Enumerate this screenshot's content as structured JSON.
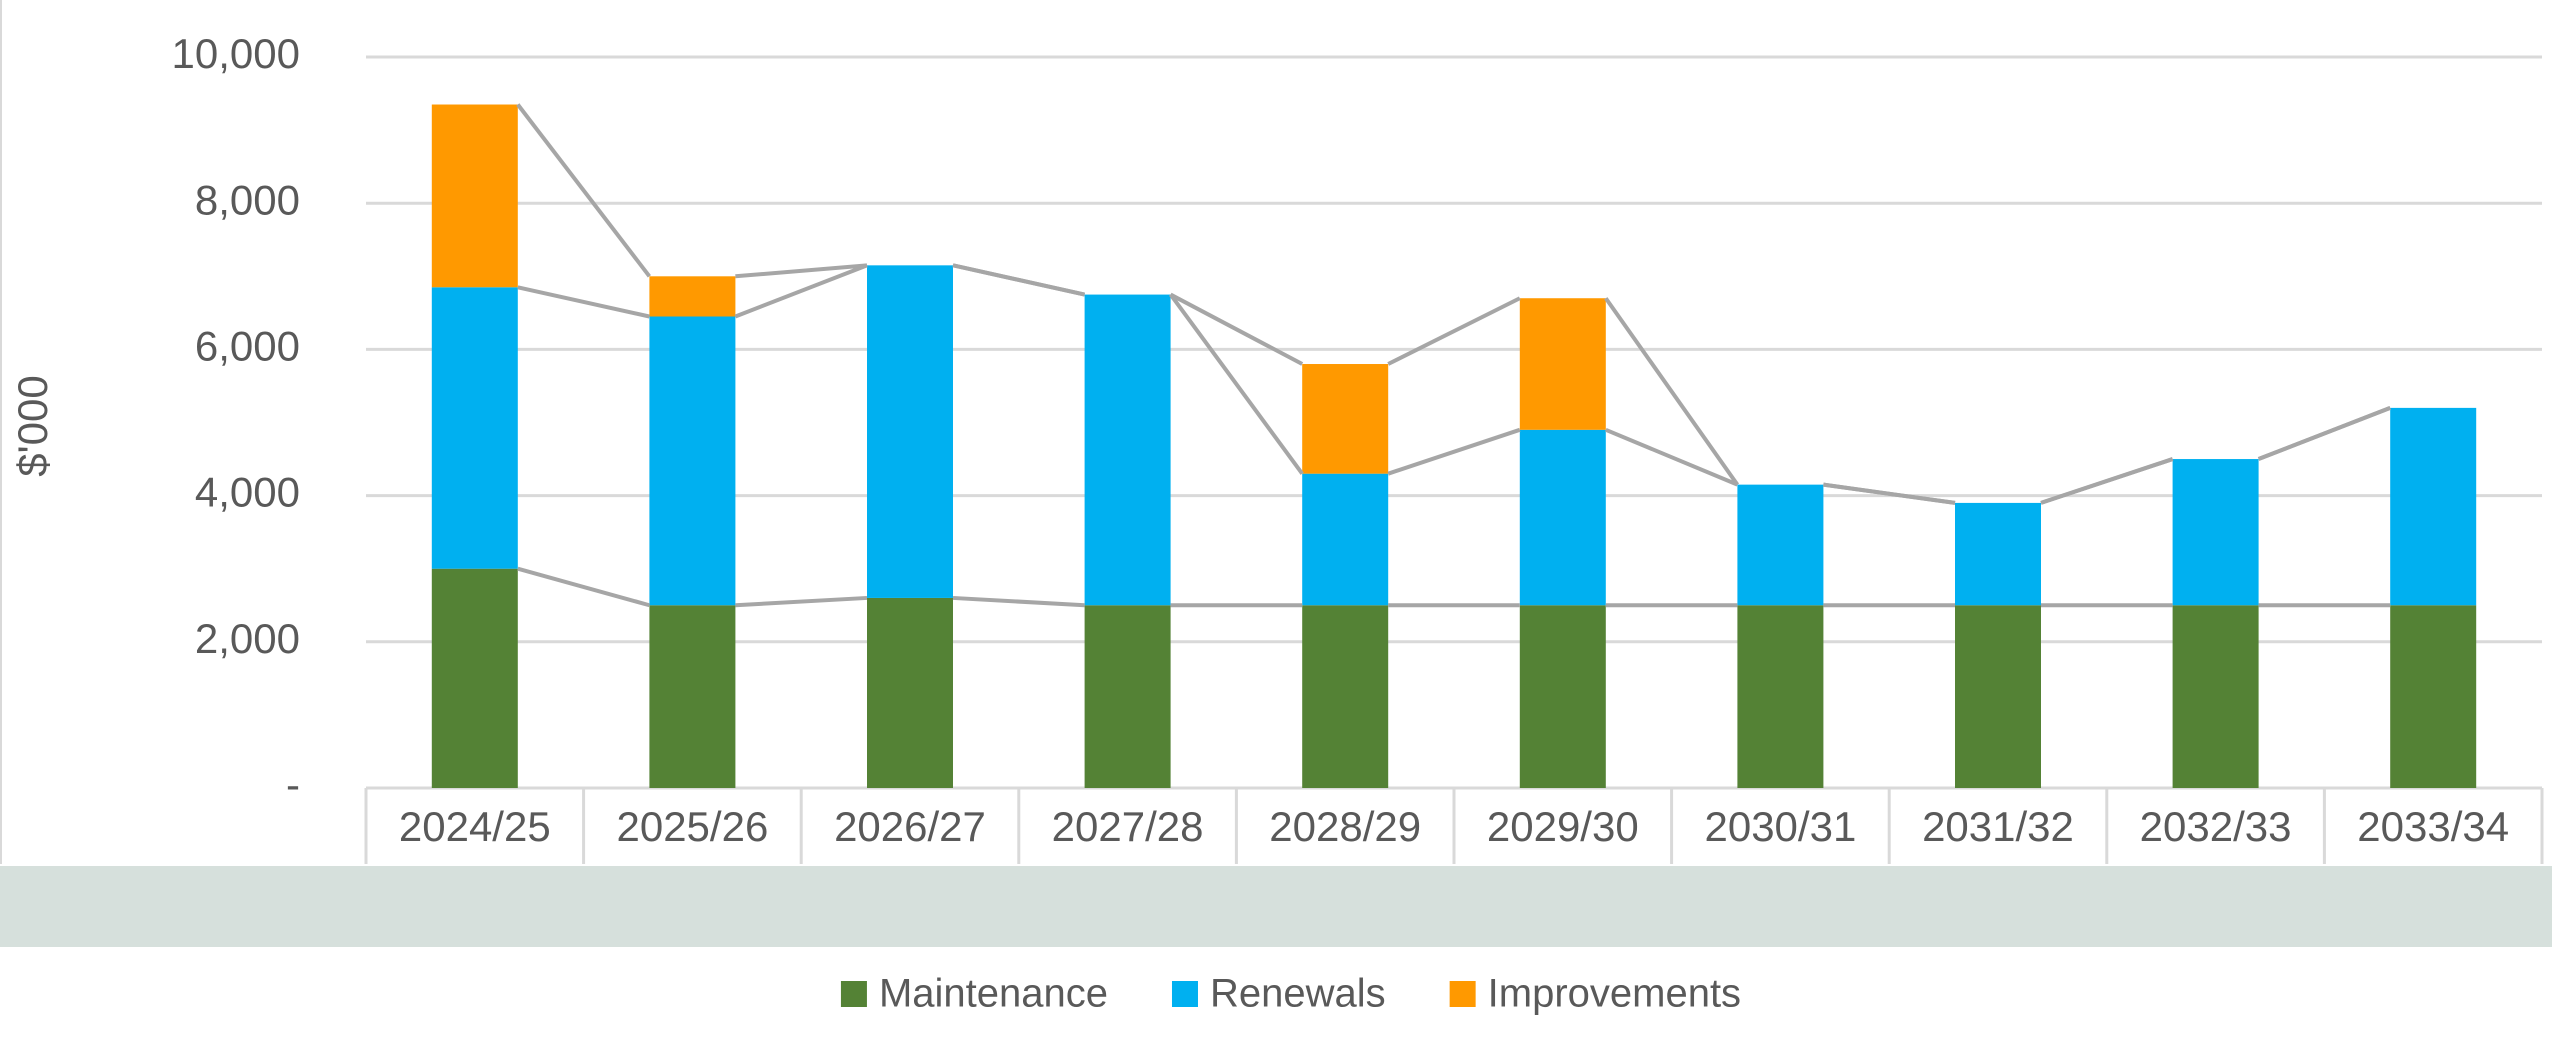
{
  "chart_data": {
    "type": "stacked-bar",
    "y_label": "$'000",
    "categories": [
      "2024/25",
      "2025/26",
      "2026/27",
      "2027/28",
      "2028/29",
      "2029/30",
      "2030/31",
      "2031/32",
      "2032/33",
      "2033/34"
    ],
    "series": [
      {
        "name": "Maintenance",
        "color": "#548235",
        "values": [
          3000,
          2500,
          2600,
          2500,
          2500,
          2500,
          2500,
          2500,
          2500,
          2500
        ]
      },
      {
        "name": "Renewals",
        "color": "#00b0f0",
        "values": [
          3850,
          3950,
          4550,
          4250,
          1800,
          2400,
          1650,
          1400,
          2000,
          2700
        ]
      },
      {
        "name": "Improvements",
        "color": "#ff9900",
        "values": [
          2500,
          550,
          0,
          0,
          1500,
          1800,
          0,
          0,
          0,
          0
        ]
      }
    ],
    "ylim": [
      0,
      10000
    ],
    "yticks": [
      {
        "value": 0,
        "label": "-"
      },
      {
        "value": 2000,
        "label": "2,000"
      },
      {
        "value": 4000,
        "label": "4,000"
      },
      {
        "value": 6000,
        "label": "6,000"
      },
      {
        "value": 8000,
        "label": "8,000"
      },
      {
        "value": 10000,
        "label": "10,000"
      }
    ],
    "grid": true,
    "series_lines": true,
    "legend": "bottom"
  }
}
